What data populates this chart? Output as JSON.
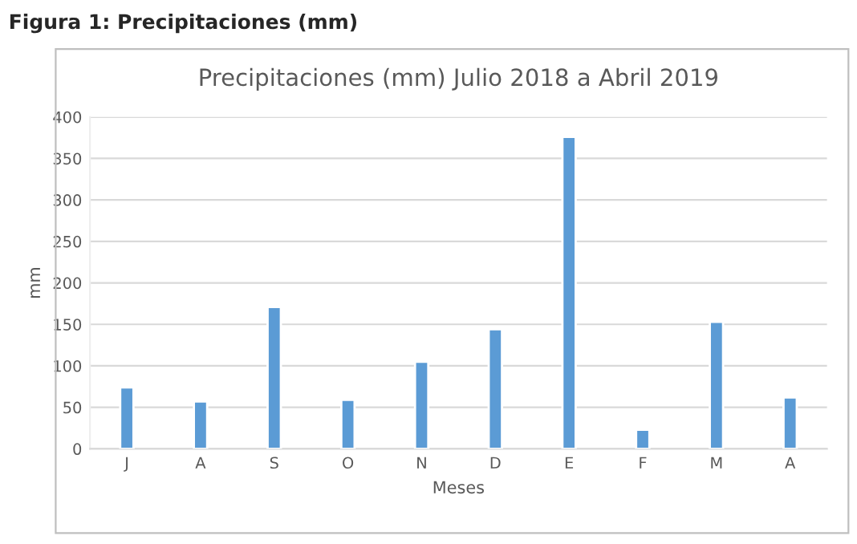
{
  "chart_data": {
    "type": "bar",
    "title": "Figura 1: Precipitaciones (mm)",
    "subtitle": "Precipitaciones (mm) Julio 2018 a Abril 2019",
    "xlabel": "Meses",
    "ylabel": "mm",
    "categories": [
      "J",
      "A",
      "S",
      "O",
      "N",
      "D",
      "E",
      "F",
      "M",
      "A"
    ],
    "values": [
      74,
      57,
      171,
      59,
      105,
      144,
      376,
      23,
      153,
      62
    ],
    "color": "#5b9bd5",
    "ylim": [
      0,
      400
    ],
    "yticks": [
      0,
      50,
      100,
      150,
      200,
      250,
      300,
      350,
      400
    ],
    "grid": "y",
    "legend": false
  }
}
